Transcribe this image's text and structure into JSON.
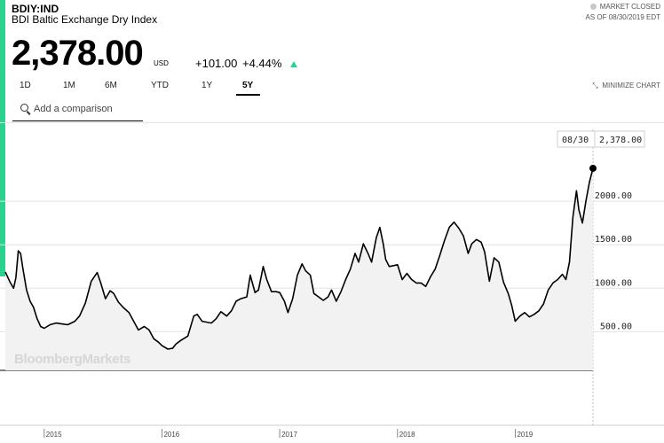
{
  "header": {
    "ticker": "BDIY:IND",
    "name": "BDI Baltic Exchange Dry Index",
    "market_status": "MARKET CLOSED",
    "as_of": "AS OF 08/30/2019 EDT"
  },
  "quote": {
    "price": "2,378.00",
    "currency": "USD",
    "change": "+101.00",
    "change_pct": "+4.44%"
  },
  "tabs": [
    "1D",
    "1M",
    "6M",
    "YTD",
    "1Y",
    "5Y"
  ],
  "active_tab": "5Y",
  "minimize_label": "MINIMIZE CHART",
  "search": {
    "placeholder": "Add a comparison"
  },
  "watermark": "BloombergMarkets",
  "colors": {
    "accent": "#2bd18f",
    "line": "#000000",
    "area": "#f2f2f2"
  },
  "chart_data": {
    "type": "area",
    "y_ticks": [
      {
        "value": 2000,
        "label": "2000.00"
      },
      {
        "value": 1500,
        "label": "1500.00"
      },
      {
        "value": 1000,
        "label": "1000.00"
      },
      {
        "value": 500,
        "label": "500.00"
      }
    ],
    "x_ticks": [
      {
        "value": 2015,
        "label": "2015"
      },
      {
        "value": 2016,
        "label": "2016"
      },
      {
        "value": 2017,
        "label": "2017"
      },
      {
        "value": 2018,
        "label": "2018"
      },
      {
        "value": 2019,
        "label": "2019"
      }
    ],
    "last_point": {
      "date": "08/30",
      "value": 2378,
      "label": "2,378.00"
    },
    "grid": true,
    "points": [
      [
        2014.67,
        1187
      ],
      [
        2014.71,
        1070
      ],
      [
        2014.74,
        1000
      ],
      [
        2014.76,
        1120
      ],
      [
        2014.78,
        1430
      ],
      [
        2014.8,
        1400
      ],
      [
        2014.82,
        1220
      ],
      [
        2014.85,
        980
      ],
      [
        2014.88,
        850
      ],
      [
        2014.91,
        780
      ],
      [
        2014.94,
        650
      ],
      [
        2014.97,
        560
      ],
      [
        2015.0,
        540
      ],
      [
        2015.05,
        580
      ],
      [
        2015.1,
        600
      ],
      [
        2015.15,
        590
      ],
      [
        2015.2,
        580
      ],
      [
        2015.26,
        620
      ],
      [
        2015.3,
        680
      ],
      [
        2015.35,
        830
      ],
      [
        2015.4,
        1080
      ],
      [
        2015.45,
        1180
      ],
      [
        2015.48,
        1060
      ],
      [
        2015.52,
        880
      ],
      [
        2015.56,
        970
      ],
      [
        2015.59,
        940
      ],
      [
        2015.63,
        840
      ],
      [
        2015.67,
        780
      ],
      [
        2015.72,
        720
      ],
      [
        2015.76,
        620
      ],
      [
        2015.8,
        520
      ],
      [
        2015.85,
        560
      ],
      [
        2015.89,
        520
      ],
      [
        2015.93,
        420
      ],
      [
        2015.97,
        380
      ],
      [
        2016.0,
        340
      ],
      [
        2016.05,
        300
      ],
      [
        2016.09,
        310
      ],
      [
        2016.12,
        360
      ],
      [
        2016.16,
        400
      ],
      [
        2016.22,
        450
      ],
      [
        2016.27,
        680
      ],
      [
        2016.3,
        700
      ],
      [
        2016.34,
        620
      ],
      [
        2016.38,
        610
      ],
      [
        2016.42,
        600
      ],
      [
        2016.46,
        650
      ],
      [
        2016.5,
        730
      ],
      [
        2016.55,
        680
      ],
      [
        2016.59,
        740
      ],
      [
        2016.63,
        850
      ],
      [
        2016.67,
        880
      ],
      [
        2016.72,
        900
      ],
      [
        2016.75,
        1150
      ],
      [
        2016.79,
        950
      ],
      [
        2016.82,
        980
      ],
      [
        2016.86,
        1250
      ],
      [
        2016.89,
        1100
      ],
      [
        2016.93,
        960
      ],
      [
        2016.97,
        960
      ],
      [
        2017.0,
        950
      ],
      [
        2017.04,
        850
      ],
      [
        2017.07,
        720
      ],
      [
        2017.11,
        880
      ],
      [
        2017.15,
        1150
      ],
      [
        2017.19,
        1280
      ],
      [
        2017.22,
        1200
      ],
      [
        2017.26,
        1150
      ],
      [
        2017.29,
        940
      ],
      [
        2017.33,
        900
      ],
      [
        2017.37,
        860
      ],
      [
        2017.41,
        900
      ],
      [
        2017.44,
        980
      ],
      [
        2017.48,
        850
      ],
      [
        2017.52,
        960
      ],
      [
        2017.56,
        1100
      ],
      [
        2017.6,
        1220
      ],
      [
        2017.64,
        1400
      ],
      [
        2017.67,
        1300
      ],
      [
        2017.71,
        1510
      ],
      [
        2017.75,
        1400
      ],
      [
        2017.78,
        1300
      ],
      [
        2017.82,
        1580
      ],
      [
        2017.85,
        1700
      ],
      [
        2017.88,
        1500
      ],
      [
        2017.9,
        1330
      ],
      [
        2017.93,
        1250
      ],
      [
        2018.0,
        1270
      ],
      [
        2018.04,
        1100
      ],
      [
        2018.08,
        1170
      ],
      [
        2018.12,
        1100
      ],
      [
        2018.16,
        1060
      ],
      [
        2018.2,
        1060
      ],
      [
        2018.24,
        1020
      ],
      [
        2018.28,
        1130
      ],
      [
        2018.32,
        1220
      ],
      [
        2018.36,
        1380
      ],
      [
        2018.4,
        1550
      ],
      [
        2018.44,
        1700
      ],
      [
        2018.48,
        1760
      ],
      [
        2018.52,
        1690
      ],
      [
        2018.56,
        1600
      ],
      [
        2018.6,
        1400
      ],
      [
        2018.63,
        1510
      ],
      [
        2018.67,
        1560
      ],
      [
        2018.71,
        1530
      ],
      [
        2018.74,
        1420
      ],
      [
        2018.78,
        1080
      ],
      [
        2018.82,
        1350
      ],
      [
        2018.86,
        1300
      ],
      [
        2018.9,
        1070
      ],
      [
        2018.94,
        940
      ],
      [
        2018.97,
        800
      ],
      [
        2019.0,
        620
      ],
      [
        2019.04,
        680
      ],
      [
        2019.08,
        720
      ],
      [
        2019.12,
        670
      ],
      [
        2019.16,
        700
      ],
      [
        2019.2,
        740
      ],
      [
        2019.24,
        820
      ],
      [
        2019.28,
        980
      ],
      [
        2019.32,
        1060
      ],
      [
        2019.36,
        1100
      ],
      [
        2019.4,
        1160
      ],
      [
        2019.43,
        1100
      ],
      [
        2019.46,
        1300
      ],
      [
        2019.49,
        1820
      ],
      [
        2019.52,
        2120
      ],
      [
        2019.54,
        1900
      ],
      [
        2019.57,
        1750
      ],
      [
        2019.6,
        2000
      ],
      [
        2019.63,
        2220
      ],
      [
        2019.66,
        2378
      ]
    ]
  }
}
